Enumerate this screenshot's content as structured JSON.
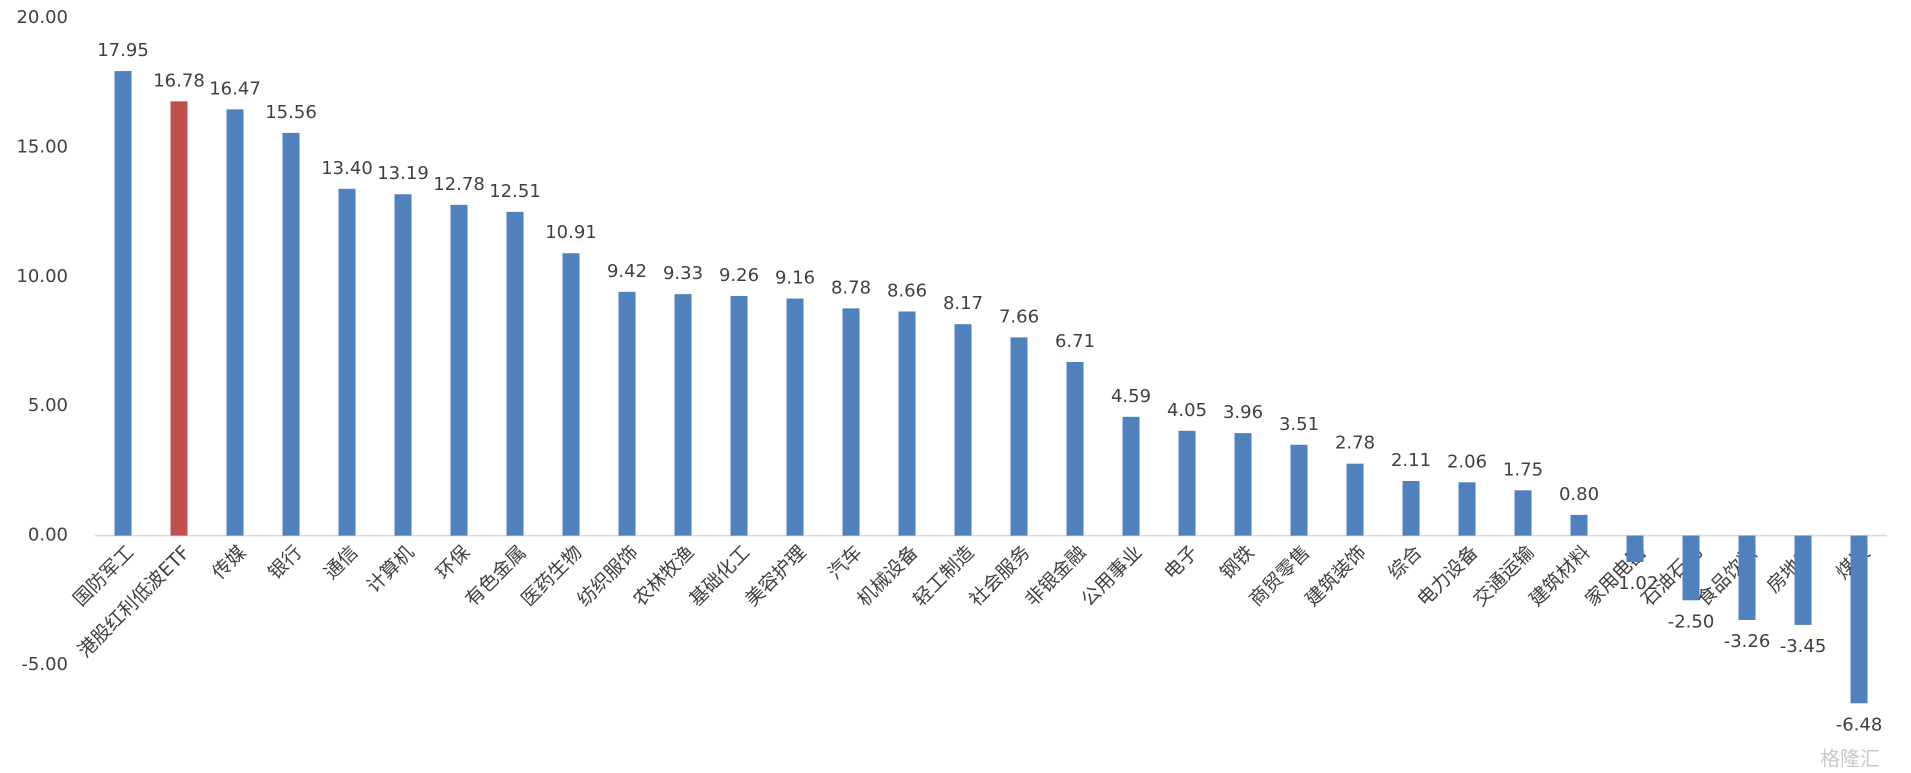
{
  "chart_data": {
    "type": "bar",
    "categories": [
      "国防军工",
      "港股红利低波ETF",
      "传媒",
      "银行",
      "通信",
      "计算机",
      "环保",
      "有色金属",
      "医药生物",
      "纺织服饰",
      "农林牧渔",
      "基础化工",
      "美容护理",
      "汽车",
      "机械设备",
      "轻工制造",
      "社会服务",
      "非银金融",
      "公用事业",
      "电子",
      "钢铁",
      "商贸零售",
      "建筑装饰",
      "综合",
      "电力设备",
      "交通运输",
      "建筑材料",
      "家用电器",
      "石油石化",
      "食品饮料",
      "房地产",
      "煤炭"
    ],
    "values": [
      17.95,
      16.78,
      16.47,
      15.56,
      13.4,
      13.19,
      12.78,
      12.51,
      10.91,
      9.42,
      9.33,
      9.26,
      9.16,
      8.78,
      8.66,
      8.17,
      7.66,
      6.71,
      4.59,
      4.05,
      3.96,
      3.51,
      2.78,
      2.11,
      2.06,
      1.75,
      0.8,
      -1.02,
      -2.5,
      -3.26,
      -3.45,
      -6.48
    ],
    "value_labels": [
      "17.95",
      "16.78",
      "16.47",
      "15.56",
      "13.40",
      "13.19",
      "12.78",
      "12.51",
      "10.91",
      "9.42",
      "9.33",
      "9.26",
      "9.16",
      "8.78",
      "8.66",
      "8.17",
      "7.66",
      "6.71",
      "4.59",
      "4.05",
      "3.96",
      "3.51",
      "2.78",
      "2.11",
      "2.06",
      "1.75",
      "0.80",
      "-1.02",
      "-2.50",
      "-3.26",
      "-3.45",
      "-6.48"
    ],
    "color": "#4f81bd",
    "highlight": {
      "index": 1,
      "color": "#c0504d"
    },
    "ylim": [
      -5,
      20
    ],
    "yticks": [
      {
        "value": -5,
        "label": "-5.00"
      },
      {
        "value": 0,
        "label": "0.00"
      },
      {
        "value": 5,
        "label": "5.00"
      },
      {
        "value": 10,
        "label": "10.00"
      },
      {
        "value": 15,
        "label": "15.00"
      },
      {
        "value": 20,
        "label": "20.00"
      }
    ],
    "watermark": "格隆汇"
  }
}
